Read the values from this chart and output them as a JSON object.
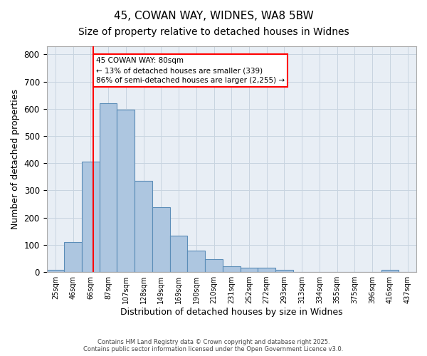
{
  "title_line1": "45, COWAN WAY, WIDNES, WA8 5BW",
  "title_line2": "Size of property relative to detached houses in Widnes",
  "xlabel": "Distribution of detached houses by size in Widnes",
  "ylabel": "Number of detached properties",
  "categories": [
    "25sqm",
    "46sqm",
    "66sqm",
    "87sqm",
    "107sqm",
    "128sqm",
    "149sqm",
    "169sqm",
    "190sqm",
    "210sqm",
    "231sqm",
    "252sqm",
    "272sqm",
    "293sqm",
    "313sqm",
    "334sqm",
    "355sqm",
    "375sqm",
    "396sqm",
    "416sqm",
    "437sqm"
  ],
  "bar_heights": [
    7,
    110,
    405,
    620,
    598,
    335,
    238,
    135,
    78,
    48,
    20,
    15,
    15,
    8,
    0,
    0,
    0,
    0,
    0,
    8,
    0
  ],
  "bar_color": "#adc6e0",
  "bar_edge_color": "#5b8db8",
  "grid_color": "#c8d4e0",
  "bg_color": "#e8eef5",
  "vline_color": "red",
  "annotation_text": "45 COWAN WAY: 80sqm\n← 13% of detached houses are smaller (339)\n86% of semi-detached houses are larger (2,255) →",
  "annotation_box_color": "white",
  "annotation_box_edge": "red",
  "ylim": [
    0,
    830
  ],
  "yticks": [
    0,
    100,
    200,
    300,
    400,
    500,
    600,
    700,
    800
  ],
  "footer_text": "Contains HM Land Registry data © Crown copyright and database right 2025.\nContains public sector information licensed under the Open Government Licence v3.0.",
  "title_fontsize": 11,
  "subtitle_fontsize": 10,
  "bin_edges_sqm": [
    25,
    46,
    66,
    87,
    107,
    128,
    149,
    169,
    190,
    210,
    231,
    252,
    272,
    293,
    313,
    334,
    355,
    375,
    396,
    416,
    437
  ],
  "vline_sqm": 80
}
